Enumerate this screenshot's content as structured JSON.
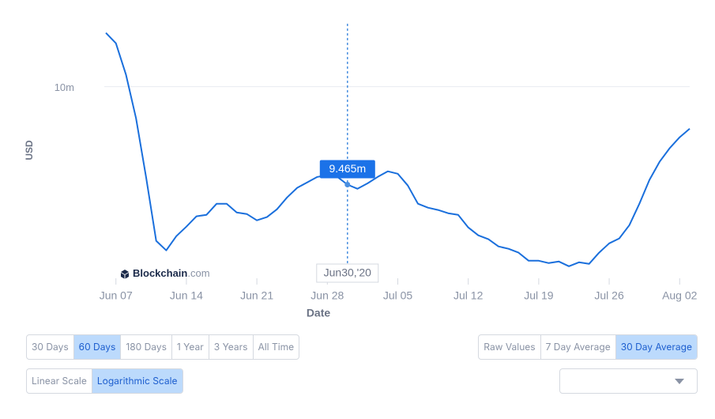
{
  "chart_data": {
    "type": "line",
    "yscale": "log",
    "y_label": "USD",
    "x_label": "Date",
    "grid": true,
    "watermark": {
      "brand": "Blockchain",
      "suffix": ".com"
    },
    "x": [
      "2020-06-06",
      "2020-06-07",
      "2020-06-08",
      "2020-06-09",
      "2020-06-10",
      "2020-06-11",
      "2020-06-12",
      "2020-06-13",
      "2020-06-14",
      "2020-06-15",
      "2020-06-16",
      "2020-06-17",
      "2020-06-18",
      "2020-06-19",
      "2020-06-20",
      "2020-06-21",
      "2020-06-22",
      "2020-06-23",
      "2020-06-24",
      "2020-06-25",
      "2020-06-26",
      "2020-06-27",
      "2020-06-28",
      "2020-06-29",
      "2020-06-30",
      "2020-07-01",
      "2020-07-02",
      "2020-07-03",
      "2020-07-04",
      "2020-07-05",
      "2020-07-06",
      "2020-07-07",
      "2020-07-08",
      "2020-07-09",
      "2020-07-10",
      "2020-07-11",
      "2020-07-12",
      "2020-07-13",
      "2020-07-14",
      "2020-07-15",
      "2020-07-16",
      "2020-07-17",
      "2020-07-18",
      "2020-07-19",
      "2020-07-20",
      "2020-07-21",
      "2020-07-22",
      "2020-07-23",
      "2020-07-24",
      "2020-07-25",
      "2020-07-26",
      "2020-07-27",
      "2020-07-28",
      "2020-07-29",
      "2020-07-30",
      "2020-07-31",
      "2020-08-01",
      "2020-08-02",
      "2020-08-03"
    ],
    "series": [
      {
        "color": "#1a6fdc",
        "values": [
          10307000,
          10247000,
          10067000,
          9824000,
          9502000,
          9171000,
          9122000,
          9195000,
          9244000,
          9298000,
          9306000,
          9364000,
          9364000,
          9318000,
          9310000,
          9277000,
          9294000,
          9335000,
          9397000,
          9448000,
          9477000,
          9506000,
          9515000,
          9506000,
          9465000,
          9443000,
          9472000,
          9506000,
          9536000,
          9523000,
          9460000,
          9364000,
          9343000,
          9331000,
          9314000,
          9306000,
          9240000,
          9199000,
          9179000,
          9142000,
          9130000,
          9110000,
          9069000,
          9069000,
          9057000,
          9065000,
          9041000,
          9061000,
          9053000,
          9110000,
          9158000,
          9183000,
          9252000,
          9364000,
          9490000,
          9587000,
          9660000,
          9720000,
          9767000
        ]
      }
    ],
    "xlim": [
      "2020-06-06",
      "2020-08-03"
    ],
    "xticks": [
      {
        "value": "2020-06-07",
        "label": "Jun 07"
      },
      {
        "value": "2020-06-14",
        "label": "Jun 14"
      },
      {
        "value": "2020-06-21",
        "label": "Jun 21"
      },
      {
        "value": "2020-06-28",
        "label": "Jun 28"
      },
      {
        "value": "2020-07-05",
        "label": "Jul 05"
      },
      {
        "value": "2020-07-12",
        "label": "Jul 12"
      },
      {
        "value": "2020-07-19",
        "label": "Jul 19"
      },
      {
        "value": "2020-07-26",
        "label": "Jul 26"
      },
      {
        "value": "2020-08-02",
        "label": "Aug 02"
      }
    ],
    "ylim": [
      8980000,
      10360000
    ],
    "yticks": [
      {
        "value": 10000000,
        "label": "10m"
      }
    ],
    "tooltip": {
      "x": "2020-06-30",
      "x_label": "Jun30,'20",
      "value": 9465000,
      "value_label": "9.465m"
    }
  },
  "controls": {
    "range": [
      {
        "label": "30 Days"
      },
      {
        "label": "60 Days",
        "selected": true
      },
      {
        "label": "180 Days"
      },
      {
        "label": "1 Year"
      },
      {
        "label": "3 Years"
      },
      {
        "label": "All Time"
      }
    ],
    "scale": [
      {
        "label": "Linear Scale"
      },
      {
        "label": "Logarithmic Scale",
        "selected": true
      }
    ],
    "average": [
      {
        "label": "Raw Values"
      },
      {
        "label": "7 Day Average"
      },
      {
        "label": "30 Day Average",
        "selected": true
      }
    ]
  }
}
